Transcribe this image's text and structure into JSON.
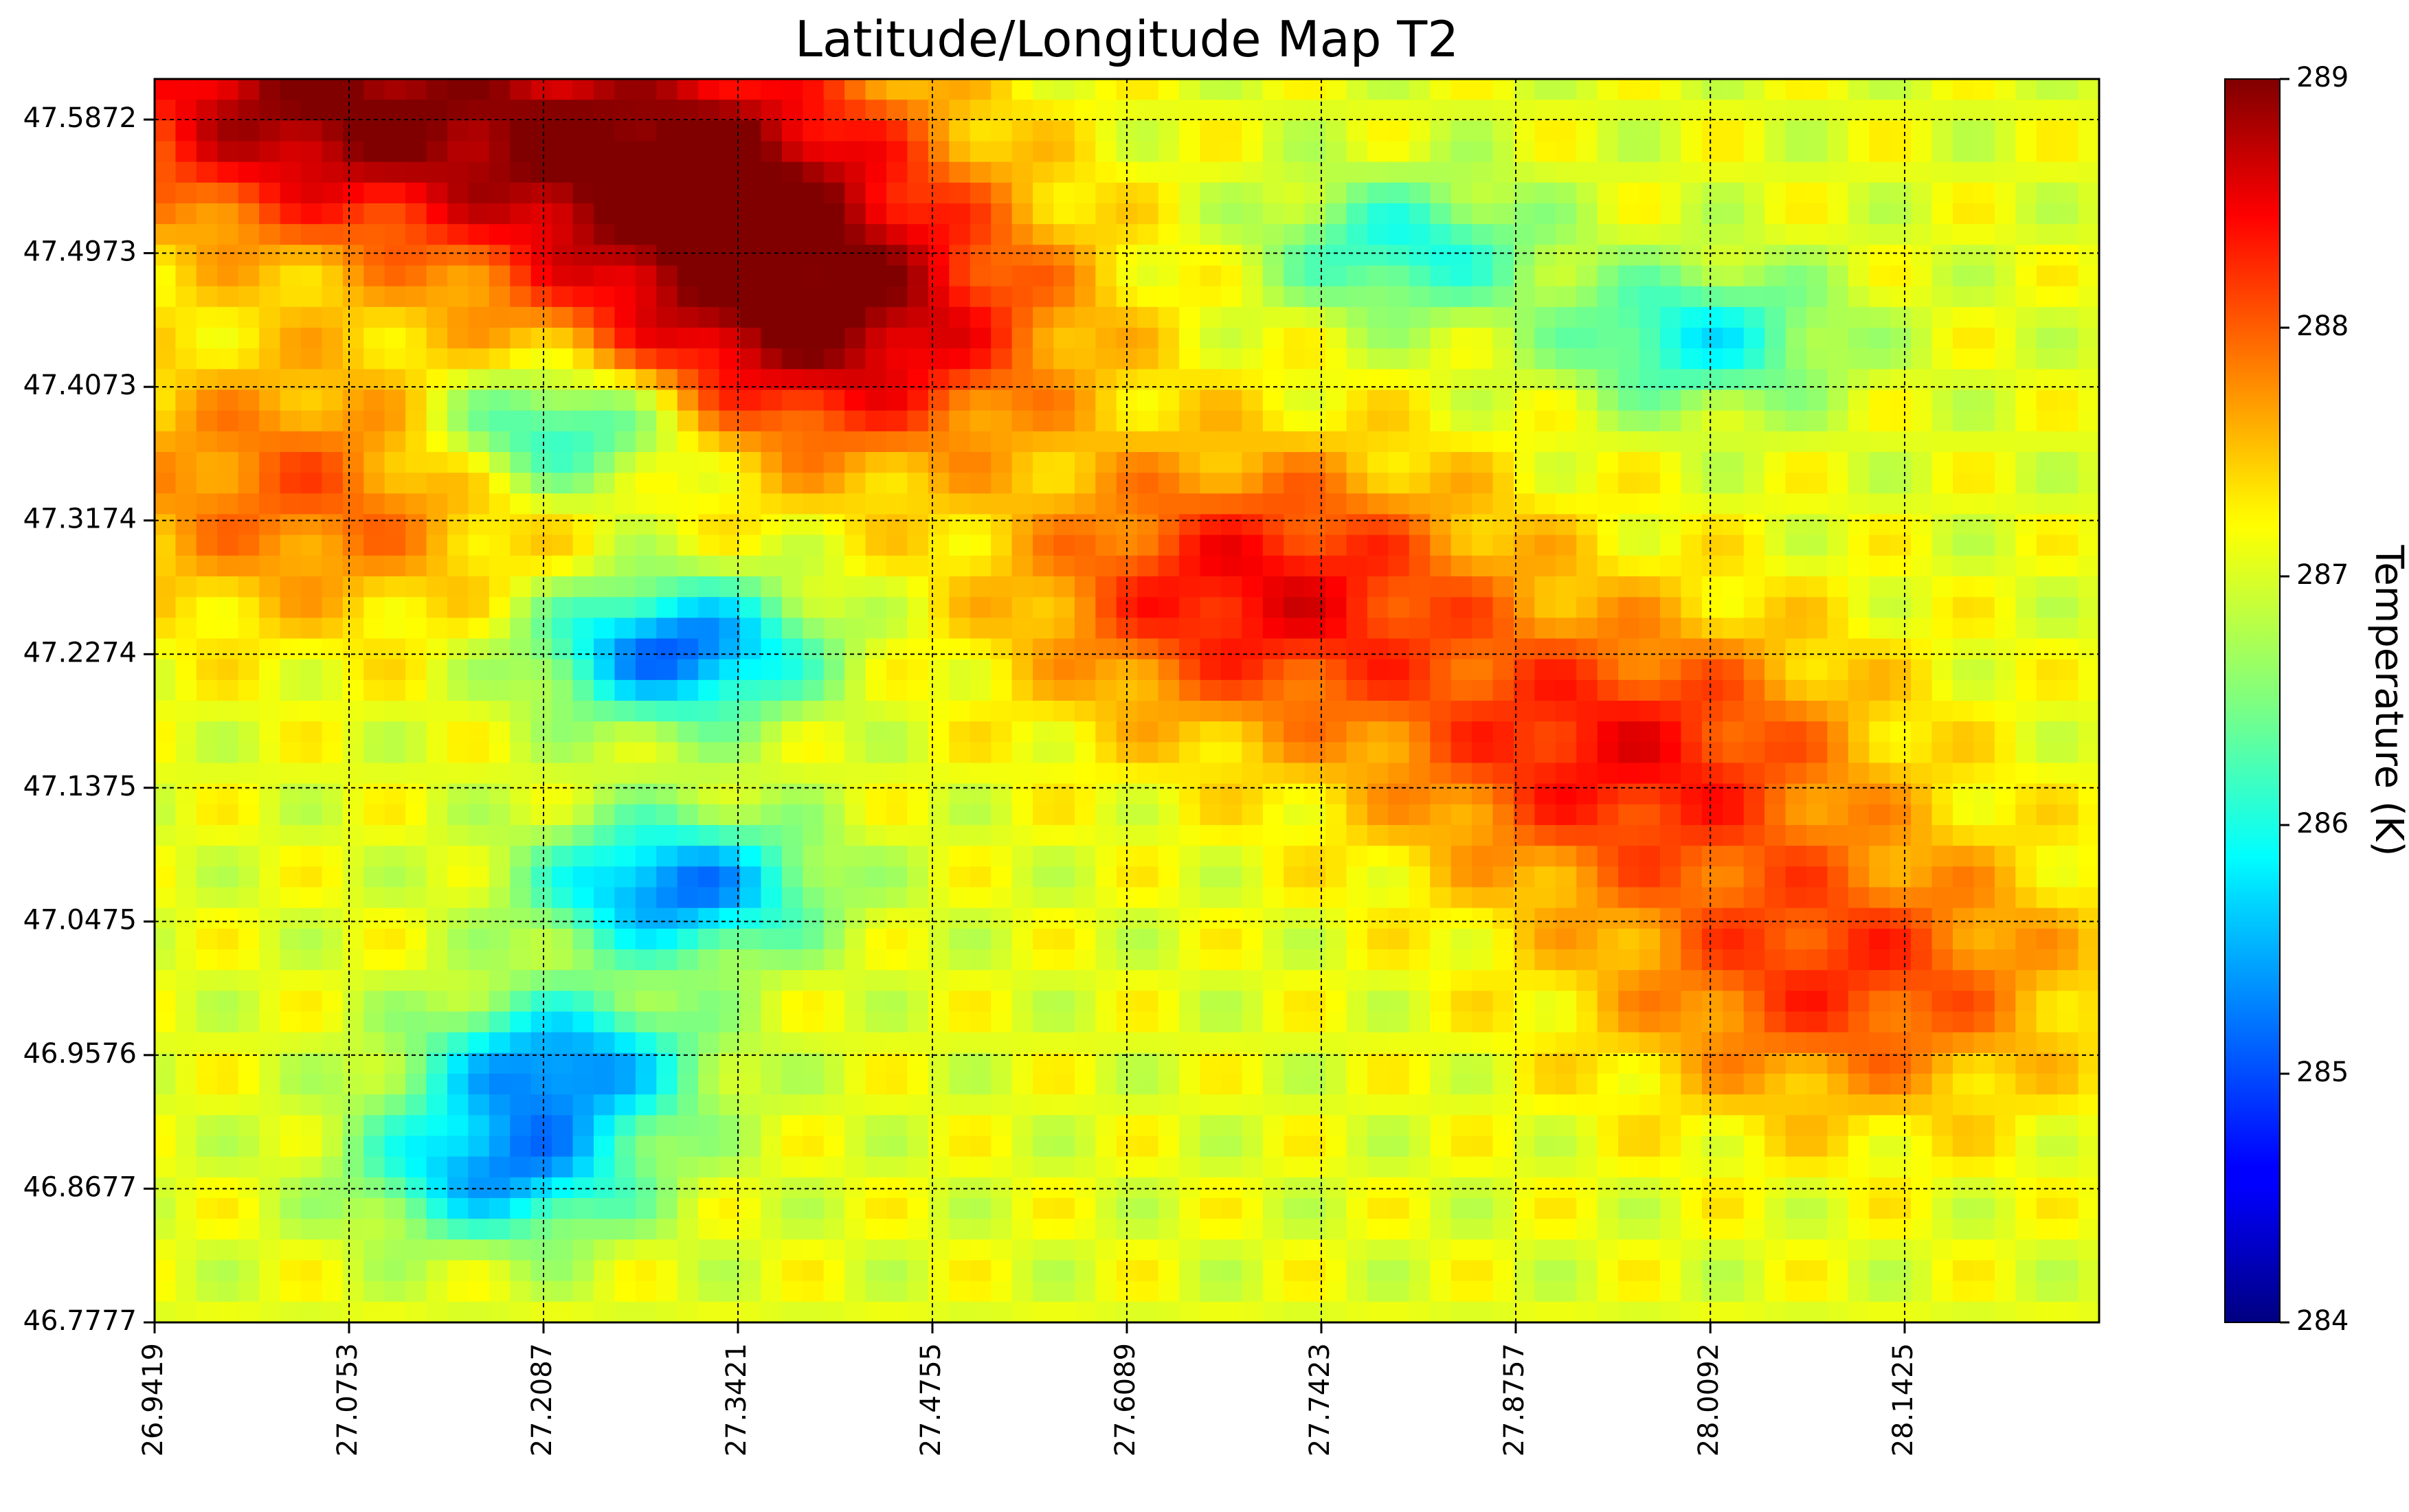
{
  "chart_data": {
    "type": "heatmap",
    "title": "Latitude/Longitude Map T2",
    "xlabel": "",
    "ylabel": "",
    "x_ticks": [
      "26.9419",
      "27.0753",
      "27.2087",
      "27.3421",
      "27.4755",
      "27.6089",
      "27.7423",
      "27.8757",
      "28.0092",
      "28.1425"
    ],
    "y_ticks": [
      "47.5872",
      "47.4973",
      "47.4073",
      "47.3174",
      "47.2274",
      "47.1375",
      "47.0475",
      "46.9576",
      "46.8677",
      "46.7777"
    ],
    "xlim": [
      26.9419,
      28.2759
    ],
    "ylim": [
      46.7777,
      47.6145
    ],
    "colorbar": {
      "label": "Temperature (K)",
      "range": [
        284,
        289
      ],
      "ticks": [
        "284",
        "285",
        "286",
        "287",
        "288",
        "289"
      ],
      "colormap": "jet"
    },
    "grid": "on, dashed, black",
    "values_note_hotspots": [
      {
        "lon": 27.3,
        "lat": 47.56,
        "value": 288.9
      },
      {
        "lon": 27.4,
        "lat": 47.45,
        "value": 288.8
      },
      {
        "lon": 27.7,
        "lat": 47.27,
        "value": 288.4
      },
      {
        "lon": 27.95,
        "lat": 47.16,
        "value": 288.3
      },
      {
        "lon": 28.1,
        "lat": 47.01,
        "value": 288.1
      },
      {
        "lon": 27.05,
        "lat": 47.34,
        "value": 287.9
      },
      {
        "lon": 27.05,
        "lat": 47.6,
        "value": 288.9
      }
    ],
    "values_note_coldspots": [
      {
        "lon": 27.3,
        "lat": 47.23,
        "value": 285.1
      },
      {
        "lon": 27.3,
        "lat": 47.07,
        "value": 285.2
      },
      {
        "lon": 27.22,
        "lat": 46.95,
        "value": 285.3
      },
      {
        "lon": 27.18,
        "lat": 46.88,
        "value": 285.4
      },
      {
        "lon": 27.22,
        "lat": 47.38,
        "value": 285.6
      },
      {
        "lon": 27.8,
        "lat": 47.5,
        "value": 286.0
      },
      {
        "lon": 28.0,
        "lat": 47.44,
        "value": 285.9
      }
    ],
    "baseline_value": 287.0
  }
}
